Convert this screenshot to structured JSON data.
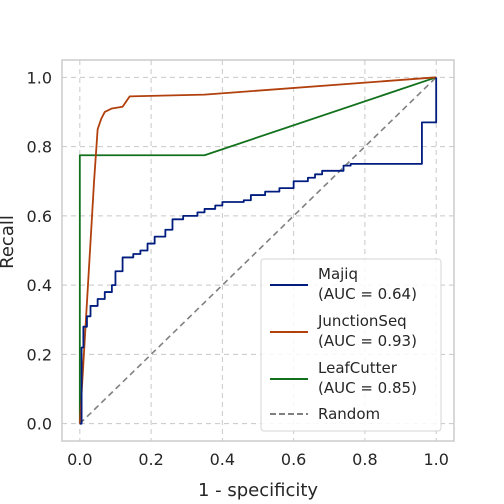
{
  "chart_data": {
    "type": "line",
    "xlabel": "1 - specificity",
    "ylabel": "Recall",
    "xlim": [
      -0.05,
      1.05
    ],
    "ylim": [
      -0.05,
      1.05
    ],
    "x_ticks": [
      "0.0",
      "0.2",
      "0.4",
      "0.6",
      "0.8",
      "1.0"
    ],
    "y_ticks": [
      "0.0",
      "0.2",
      "0.4",
      "0.6",
      "0.8",
      "1.0"
    ],
    "grid": true,
    "legend_position": "lower-right",
    "series": [
      {
        "name": "Majiq",
        "auc_label": "(AUC = 0.64)",
        "color": "#001c7f",
        "style": "solid",
        "points": [
          [
            0,
            0
          ],
          [
            0.005,
            0.22
          ],
          [
            0.01,
            0.28
          ],
          [
            0.02,
            0.31
          ],
          [
            0.03,
            0.34
          ],
          [
            0.05,
            0.36
          ],
          [
            0.07,
            0.38
          ],
          [
            0.09,
            0.4
          ],
          [
            0.1,
            0.44
          ],
          [
            0.12,
            0.48
          ],
          [
            0.15,
            0.49
          ],
          [
            0.17,
            0.5
          ],
          [
            0.19,
            0.52
          ],
          [
            0.21,
            0.54
          ],
          [
            0.24,
            0.56
          ],
          [
            0.26,
            0.59
          ],
          [
            0.29,
            0.6
          ],
          [
            0.33,
            0.61
          ],
          [
            0.35,
            0.62
          ],
          [
            0.38,
            0.63
          ],
          [
            0.4,
            0.64
          ],
          [
            0.46,
            0.645
          ],
          [
            0.48,
            0.66
          ],
          [
            0.52,
            0.67
          ],
          [
            0.56,
            0.68
          ],
          [
            0.6,
            0.7
          ],
          [
            0.64,
            0.71
          ],
          [
            0.66,
            0.72
          ],
          [
            0.68,
            0.73
          ],
          [
            0.74,
            0.745
          ],
          [
            0.76,
            0.75
          ],
          [
            0.93,
            0.75
          ],
          [
            0.96,
            0.87
          ],
          [
            1.0,
            1.0
          ]
        ]
      },
      {
        "name": "JunctionSeq",
        "auc_label": "(AUC = 0.93)",
        "color": "#b1400d",
        "style": "solid",
        "points": [
          [
            0,
            0
          ],
          [
            0.04,
            0.7
          ],
          [
            0.05,
            0.85
          ],
          [
            0.06,
            0.88
          ],
          [
            0.07,
            0.9
          ],
          [
            0.09,
            0.91
          ],
          [
            0.12,
            0.915
          ],
          [
            0.14,
            0.945
          ],
          [
            0.35,
            0.95
          ],
          [
            1.0,
            1.0
          ]
        ]
      },
      {
        "name": "LeafCutter",
        "auc_label": "(AUC = 0.85)",
        "color": "#12711c",
        "style": "solid",
        "points": [
          [
            0,
            0
          ],
          [
            0,
            0.775
          ],
          [
            0.35,
            0.775
          ],
          [
            1.0,
            1.0
          ]
        ]
      },
      {
        "name": "Random",
        "auc_label": "",
        "color": "#808080",
        "style": "dashed",
        "points": [
          [
            0,
            0
          ],
          [
            1,
            1
          ]
        ]
      }
    ]
  }
}
